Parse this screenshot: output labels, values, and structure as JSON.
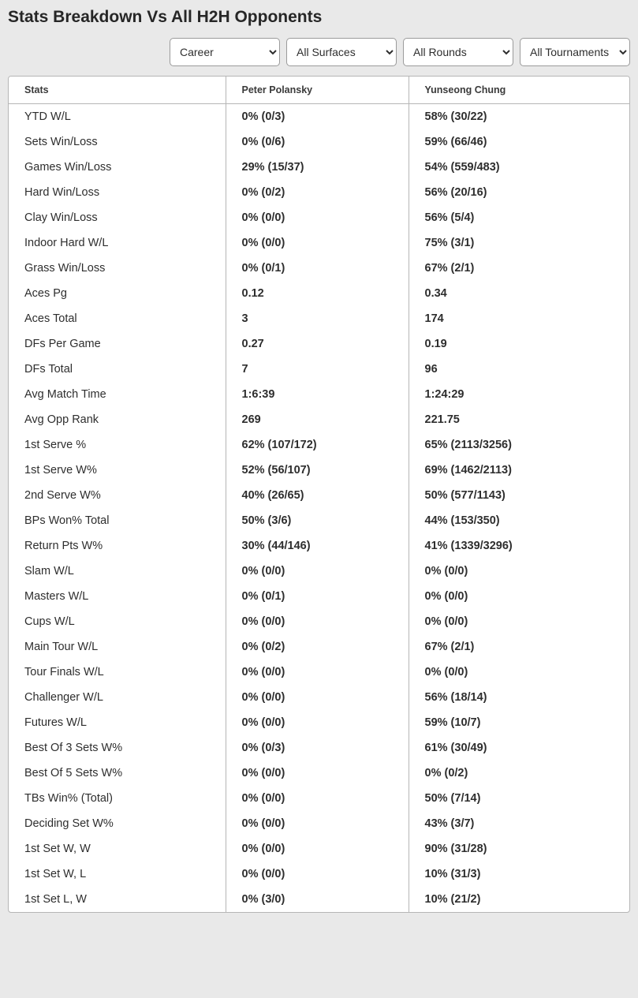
{
  "title": "Stats Breakdown Vs All H2H Opponents",
  "filters": {
    "career": {
      "label": "Career",
      "options": [
        "Career"
      ]
    },
    "surfaces": {
      "label": "All Surfaces",
      "options": [
        "All Surfaces"
      ]
    },
    "rounds": {
      "label": "All Rounds",
      "options": [
        "All Rounds"
      ]
    },
    "tournaments": {
      "label": "All Tournaments",
      "options": [
        "All Tournaments"
      ]
    }
  },
  "columns": {
    "stats": "Stats",
    "p1": "Peter Polansky",
    "p2": "Yunseong Chung"
  },
  "rows": [
    {
      "stat": "YTD W/L",
      "p1": "0% (0/3)",
      "p2": "58% (30/22)"
    },
    {
      "stat": "Sets Win/Loss",
      "p1": "0% (0/6)",
      "p2": "59% (66/46)"
    },
    {
      "stat": "Games Win/Loss",
      "p1": "29% (15/37)",
      "p2": "54% (559/483)"
    },
    {
      "stat": "Hard Win/Loss",
      "p1": "0% (0/2)",
      "p2": "56% (20/16)"
    },
    {
      "stat": "Clay Win/Loss",
      "p1": "0% (0/0)",
      "p2": "56% (5/4)"
    },
    {
      "stat": "Indoor Hard W/L",
      "p1": "0% (0/0)",
      "p2": "75% (3/1)"
    },
    {
      "stat": "Grass Win/Loss",
      "p1": "0% (0/1)",
      "p2": "67% (2/1)"
    },
    {
      "stat": "Aces Pg",
      "p1": "0.12",
      "p2": "0.34"
    },
    {
      "stat": "Aces Total",
      "p1": "3",
      "p2": "174"
    },
    {
      "stat": "DFs Per Game",
      "p1": "0.27",
      "p2": "0.19"
    },
    {
      "stat": "DFs Total",
      "p1": "7",
      "p2": "96"
    },
    {
      "stat": "Avg Match Time",
      "p1": "1:6:39",
      "p2": "1:24:29"
    },
    {
      "stat": "Avg Opp Rank",
      "p1": "269",
      "p2": "221.75"
    },
    {
      "stat": "1st Serve %",
      "p1": "62% (107/172)",
      "p2": "65% (2113/3256)"
    },
    {
      "stat": "1st Serve W%",
      "p1": "52% (56/107)",
      "p2": "69% (1462/2113)"
    },
    {
      "stat": "2nd Serve W%",
      "p1": "40% (26/65)",
      "p2": "50% (577/1143)"
    },
    {
      "stat": "BPs Won% Total",
      "p1": "50% (3/6)",
      "p2": "44% (153/350)"
    },
    {
      "stat": "Return Pts W%",
      "p1": "30% (44/146)",
      "p2": "41% (1339/3296)"
    },
    {
      "stat": "Slam W/L",
      "p1": "0% (0/0)",
      "p2": "0% (0/0)"
    },
    {
      "stat": "Masters W/L",
      "p1": "0% (0/1)",
      "p2": "0% (0/0)"
    },
    {
      "stat": "Cups W/L",
      "p1": "0% (0/0)",
      "p2": "0% (0/0)"
    },
    {
      "stat": "Main Tour W/L",
      "p1": "0% (0/2)",
      "p2": "67% (2/1)"
    },
    {
      "stat": "Tour Finals W/L",
      "p1": "0% (0/0)",
      "p2": "0% (0/0)"
    },
    {
      "stat": "Challenger W/L",
      "p1": "0% (0/0)",
      "p2": "56% (18/14)"
    },
    {
      "stat": "Futures W/L",
      "p1": "0% (0/0)",
      "p2": "59% (10/7)"
    },
    {
      "stat": "Best Of 3 Sets W%",
      "p1": "0% (0/3)",
      "p2": "61% (30/49)"
    },
    {
      "stat": "Best Of 5 Sets W%",
      "p1": "0% (0/0)",
      "p2": "0% (0/2)"
    },
    {
      "stat": "TBs Win% (Total)",
      "p1": "0% (0/0)",
      "p2": "50% (7/14)"
    },
    {
      "stat": "Deciding Set W%",
      "p1": "0% (0/0)",
      "p2": "43% (3/7)"
    },
    {
      "stat": "1st Set W, W",
      "p1": "0% (0/0)",
      "p2": "90% (31/28)"
    },
    {
      "stat": "1st Set W, L",
      "p1": "0% (0/0)",
      "p2": "10% (31/3)"
    },
    {
      "stat": "1st Set L, W",
      "p1": "0% (3/0)",
      "p2": "10% (21/2)"
    }
  ]
}
